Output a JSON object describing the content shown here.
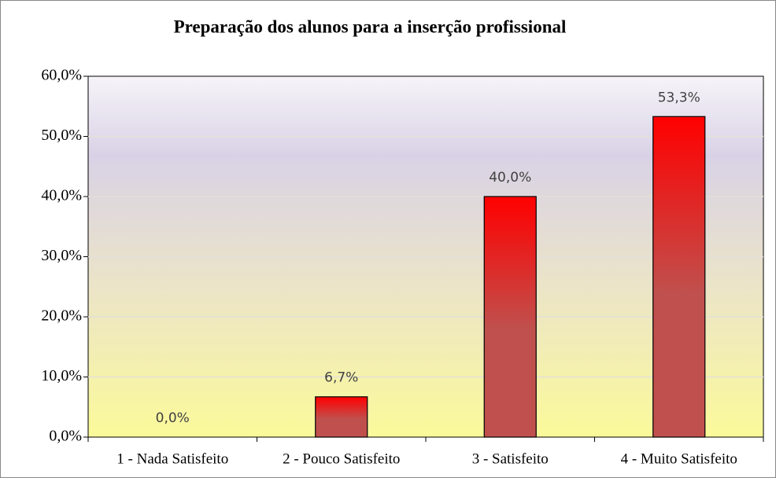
{
  "chart_data": {
    "type": "bar",
    "title": "Preparação dos alunos para a inserção profissional",
    "categories": [
      "1 - Nada Satisfeito",
      "2 - Pouco Satisfeito",
      "3 - Satisfeito",
      "4 - Muito Satisfeito"
    ],
    "values": [
      0,
      6.7,
      40,
      53.3
    ],
    "value_labels": [
      "0,0%",
      "6,7%",
      "40,0%",
      "53,3%"
    ],
    "color": "#c0504d",
    "ylim": [
      0,
      60
    ],
    "yticks": [
      {
        "value": 0,
        "label": "0,0%"
      },
      {
        "value": 10,
        "label": "10,0%"
      },
      {
        "value": 20,
        "label": "20,0%"
      },
      {
        "value": 30,
        "label": "30,0%"
      },
      {
        "value": 40,
        "label": "40,0%"
      },
      {
        "value": 50,
        "label": "50,0%"
      },
      {
        "value": 60,
        "label": "60,0%"
      }
    ],
    "grid": true
  }
}
